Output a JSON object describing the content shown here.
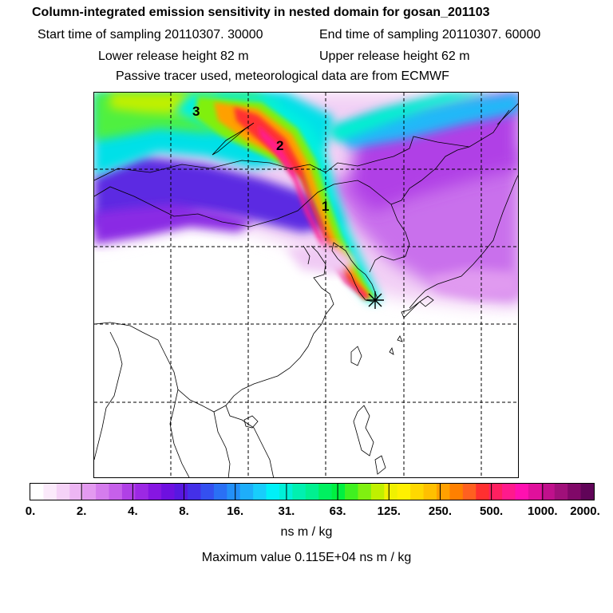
{
  "header": {
    "title": "Column-integrated emission sensitivity in nested domain for gosan_201103",
    "start_time": "Start time of sampling 20110307. 30000",
    "end_time": "End time of sampling 20110307. 60000",
    "lower_release": "Lower release height   82 m",
    "upper_release": "Upper release height   62 m",
    "tracer_note": "Passive tracer used, meteorological data are from ECMWF"
  },
  "map": {
    "labels": [
      "3",
      "2",
      "1"
    ],
    "receptor_icon": "asterisk-icon"
  },
  "colorbar": {
    "ticks": [
      "0.",
      "2.",
      "4.",
      "8.",
      "16.",
      "31.",
      "63.",
      "125.",
      "250.",
      "500.",
      "1000.",
      "2000."
    ],
    "colors": [
      "#ffffff",
      "#fbeafb",
      "#f5d2f7",
      "#edb6f3",
      "#e39af0",
      "#d57ced",
      "#c660ea",
      "#b040e6",
      "#9c28e4",
      "#8616e2",
      "#6e10e0",
      "#5718e0",
      "#4430e8",
      "#3450f0",
      "#2a70f5",
      "#2390f8",
      "#1eaefa",
      "#18cdfc",
      "#00f0f8",
      "#00f0d8",
      "#00f0b0",
      "#00f090",
      "#00f060",
      "#00f040",
      "#40f020",
      "#80f010",
      "#c0f000",
      "#f0f000",
      "#fff000",
      "#ffd800",
      "#ffc000",
      "#ffa000",
      "#ff8000",
      "#ff6020",
      "#ff3030",
      "#ff2060",
      "#ff1a8c",
      "#ff10b0",
      "#e0109c",
      "#c0108c",
      "#a0107a",
      "#800868",
      "#600458"
    ]
  },
  "units": "ns m / kg",
  "max_value": "Maximum value  0.115E+04 ns m / kg"
}
